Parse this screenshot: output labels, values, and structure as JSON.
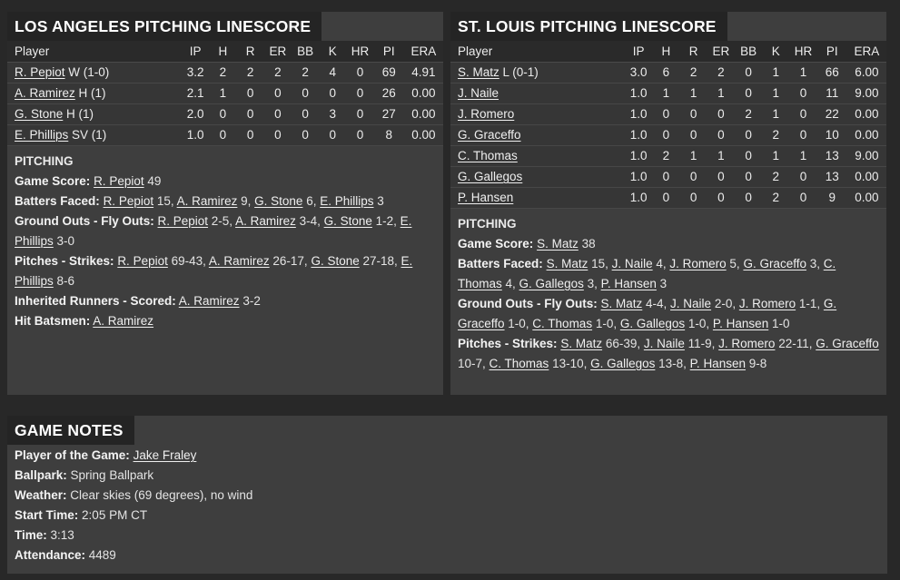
{
  "colors": {
    "page_bg": "#282828",
    "panel_bg": "#3e3e3e",
    "title_strip_bg": "#242424",
    "table_header_bg": "#2a2a2a",
    "table_row_bg": "#363636",
    "row_divider": "#4a4a4a",
    "text": "#ececec",
    "title_text": "#ffffff"
  },
  "panels": {
    "la": {
      "title": "LOS ANGELES PITCHING LINESCORE",
      "columns": [
        "Player",
        "IP",
        "H",
        "R",
        "ER",
        "BB",
        "K",
        "HR",
        "PI",
        "ERA"
      ],
      "rows": [
        {
          "name": "R. Pepiot",
          "note": "W (1-0)",
          "stats": [
            "3.2",
            "2",
            "2",
            "2",
            "2",
            "4",
            "0",
            "69",
            "4.91"
          ]
        },
        {
          "name": "A. Ramirez",
          "note": "H (1)",
          "stats": [
            "2.1",
            "1",
            "0",
            "0",
            "0",
            "0",
            "0",
            "26",
            "0.00"
          ]
        },
        {
          "name": "G. Stone",
          "note": "H (1)",
          "stats": [
            "2.0",
            "0",
            "0",
            "0",
            "0",
            "3",
            "0",
            "27",
            "0.00"
          ]
        },
        {
          "name": "E. Phillips",
          "note": "SV (1)",
          "stats": [
            "1.0",
            "0",
            "0",
            "0",
            "0",
            "0",
            "0",
            "8",
            "0.00"
          ]
        }
      ],
      "section_title": "PITCHING",
      "stat_lines": [
        {
          "label": "Game Score:",
          "segments": [
            {
              "k": "link",
              "t": "R. Pepiot"
            },
            {
              "k": "text",
              "t": " 49"
            }
          ]
        },
        {
          "label": "Batters Faced:",
          "segments": [
            {
              "k": "link",
              "t": "R. Pepiot"
            },
            {
              "k": "text",
              "t": " 15, "
            },
            {
              "k": "link",
              "t": "A. Ramirez"
            },
            {
              "k": "text",
              "t": " 9, "
            },
            {
              "k": "link",
              "t": "G. Stone"
            },
            {
              "k": "text",
              "t": " 6, "
            },
            {
              "k": "link",
              "t": "E. Phillips"
            },
            {
              "k": "text",
              "t": " 3"
            }
          ]
        },
        {
          "label": "Ground Outs - Fly Outs:",
          "segments": [
            {
              "k": "link",
              "t": "R. Pepiot"
            },
            {
              "k": "text",
              "t": " 2-5, "
            },
            {
              "k": "link",
              "t": "A. Ramirez"
            },
            {
              "k": "text",
              "t": " 3-4, "
            },
            {
              "k": "link",
              "t": "G. Stone"
            },
            {
              "k": "text",
              "t": " 1-2, "
            },
            {
              "k": "link",
              "t": "E. Phillips"
            },
            {
              "k": "text",
              "t": " 3-0"
            }
          ]
        },
        {
          "label": "Pitches - Strikes:",
          "segments": [
            {
              "k": "link",
              "t": "R. Pepiot"
            },
            {
              "k": "text",
              "t": " 69-43, "
            },
            {
              "k": "link",
              "t": "A. Ramirez"
            },
            {
              "k": "text",
              "t": " 26-17, "
            },
            {
              "k": "link",
              "t": "G. Stone"
            },
            {
              "k": "text",
              "t": " 27-18, "
            },
            {
              "k": "link",
              "t": "E. Phillips"
            },
            {
              "k": "text",
              "t": " 8-6"
            }
          ]
        },
        {
          "label": "Inherited Runners - Scored:",
          "segments": [
            {
              "k": "link",
              "t": "A. Ramirez"
            },
            {
              "k": "text",
              "t": " 3-2"
            }
          ]
        },
        {
          "label": "Hit Batsmen:",
          "segments": [
            {
              "k": "link",
              "t": "A. Ramirez"
            }
          ]
        }
      ]
    },
    "stl": {
      "title": "ST. LOUIS PITCHING LINESCORE",
      "columns": [
        "Player",
        "IP",
        "H",
        "R",
        "ER",
        "BB",
        "K",
        "HR",
        "PI",
        "ERA"
      ],
      "rows": [
        {
          "name": "S. Matz",
          "note": "L (0-1)",
          "stats": [
            "3.0",
            "6",
            "2",
            "2",
            "0",
            "1",
            "1",
            "66",
            "6.00"
          ]
        },
        {
          "name": "J. Naile",
          "note": "",
          "stats": [
            "1.0",
            "1",
            "1",
            "1",
            "0",
            "1",
            "0",
            "11",
            "9.00"
          ]
        },
        {
          "name": "J. Romero",
          "note": "",
          "stats": [
            "1.0",
            "0",
            "0",
            "0",
            "2",
            "1",
            "0",
            "22",
            "0.00"
          ]
        },
        {
          "name": "G. Graceffo",
          "note": "",
          "stats": [
            "1.0",
            "0",
            "0",
            "0",
            "0",
            "2",
            "0",
            "10",
            "0.00"
          ]
        },
        {
          "name": "C. Thomas",
          "note": "",
          "stats": [
            "1.0",
            "2",
            "1",
            "1",
            "0",
            "1",
            "1",
            "13",
            "9.00"
          ]
        },
        {
          "name": "G. Gallegos",
          "note": "",
          "stats": [
            "1.0",
            "0",
            "0",
            "0",
            "0",
            "2",
            "0",
            "13",
            "0.00"
          ]
        },
        {
          "name": "P. Hansen",
          "note": "",
          "stats": [
            "1.0",
            "0",
            "0",
            "0",
            "0",
            "2",
            "0",
            "9",
            "0.00"
          ]
        }
      ],
      "section_title": "PITCHING",
      "stat_lines": [
        {
          "label": "Game Score:",
          "segments": [
            {
              "k": "link",
              "t": "S. Matz"
            },
            {
              "k": "text",
              "t": " 38"
            }
          ]
        },
        {
          "label": "Batters Faced:",
          "segments": [
            {
              "k": "link",
              "t": "S. Matz"
            },
            {
              "k": "text",
              "t": " 15, "
            },
            {
              "k": "link",
              "t": "J. Naile"
            },
            {
              "k": "text",
              "t": " 4, "
            },
            {
              "k": "link",
              "t": "J. Romero"
            },
            {
              "k": "text",
              "t": " 5, "
            },
            {
              "k": "link",
              "t": "G. Graceffo"
            },
            {
              "k": "text",
              "t": " 3, "
            },
            {
              "k": "link",
              "t": "C. Thomas"
            },
            {
              "k": "text",
              "t": " 4, "
            },
            {
              "k": "link",
              "t": "G. Gallegos"
            },
            {
              "k": "text",
              "t": " 3, "
            },
            {
              "k": "link",
              "t": "P. Hansen"
            },
            {
              "k": "text",
              "t": " 3"
            }
          ]
        },
        {
          "label": "Ground Outs - Fly Outs:",
          "segments": [
            {
              "k": "link",
              "t": "S. Matz"
            },
            {
              "k": "text",
              "t": " 4-4, "
            },
            {
              "k": "link",
              "t": "J. Naile"
            },
            {
              "k": "text",
              "t": " 2-0, "
            },
            {
              "k": "link",
              "t": "J. Romero"
            },
            {
              "k": "text",
              "t": " 1-1, "
            },
            {
              "k": "link",
              "t": "G. Graceffo"
            },
            {
              "k": "text",
              "t": " 1-0, "
            },
            {
              "k": "link",
              "t": "C. Thomas"
            },
            {
              "k": "text",
              "t": " 1-0, "
            },
            {
              "k": "link",
              "t": "G. Gallegos"
            },
            {
              "k": "text",
              "t": " 1-0, "
            },
            {
              "k": "link",
              "t": "P. Hansen"
            },
            {
              "k": "text",
              "t": " 1-0"
            }
          ]
        },
        {
          "label": "Pitches - Strikes:",
          "segments": [
            {
              "k": "link",
              "t": "S. Matz"
            },
            {
              "k": "text",
              "t": " 66-39, "
            },
            {
              "k": "link",
              "t": "J. Naile"
            },
            {
              "k": "text",
              "t": " 11-9, "
            },
            {
              "k": "link",
              "t": "J. Romero"
            },
            {
              "k": "text",
              "t": " 22-11, "
            },
            {
              "k": "link",
              "t": "G. Graceffo"
            },
            {
              "k": "text",
              "t": " 10-7, "
            },
            {
              "k": "link",
              "t": "C. Thomas"
            },
            {
              "k": "text",
              "t": " 13-10, "
            },
            {
              "k": "link",
              "t": "G. Gallegos"
            },
            {
              "k": "text",
              "t": " 13-8, "
            },
            {
              "k": "link",
              "t": "P. Hansen"
            },
            {
              "k": "text",
              "t": " 9-8"
            }
          ]
        }
      ]
    }
  },
  "game_notes": {
    "title": "GAME NOTES",
    "lines": [
      {
        "label": "Player of the Game:",
        "segments": [
          {
            "k": "link",
            "t": "Jake Fraley"
          }
        ]
      },
      {
        "label": "Ballpark:",
        "segments": [
          {
            "k": "text",
            "t": "Spring Ballpark"
          }
        ]
      },
      {
        "label": "Weather:",
        "segments": [
          {
            "k": "text",
            "t": "Clear skies (69 degrees), no wind"
          }
        ]
      },
      {
        "label": "Start Time:",
        "segments": [
          {
            "k": "text",
            "t": "2:05 PM CT"
          }
        ]
      },
      {
        "label": "Time:",
        "segments": [
          {
            "k": "text",
            "t": "3:13"
          }
        ]
      },
      {
        "label": "Attendance:",
        "segments": [
          {
            "k": "text",
            "t": "4489"
          }
        ]
      }
    ]
  }
}
